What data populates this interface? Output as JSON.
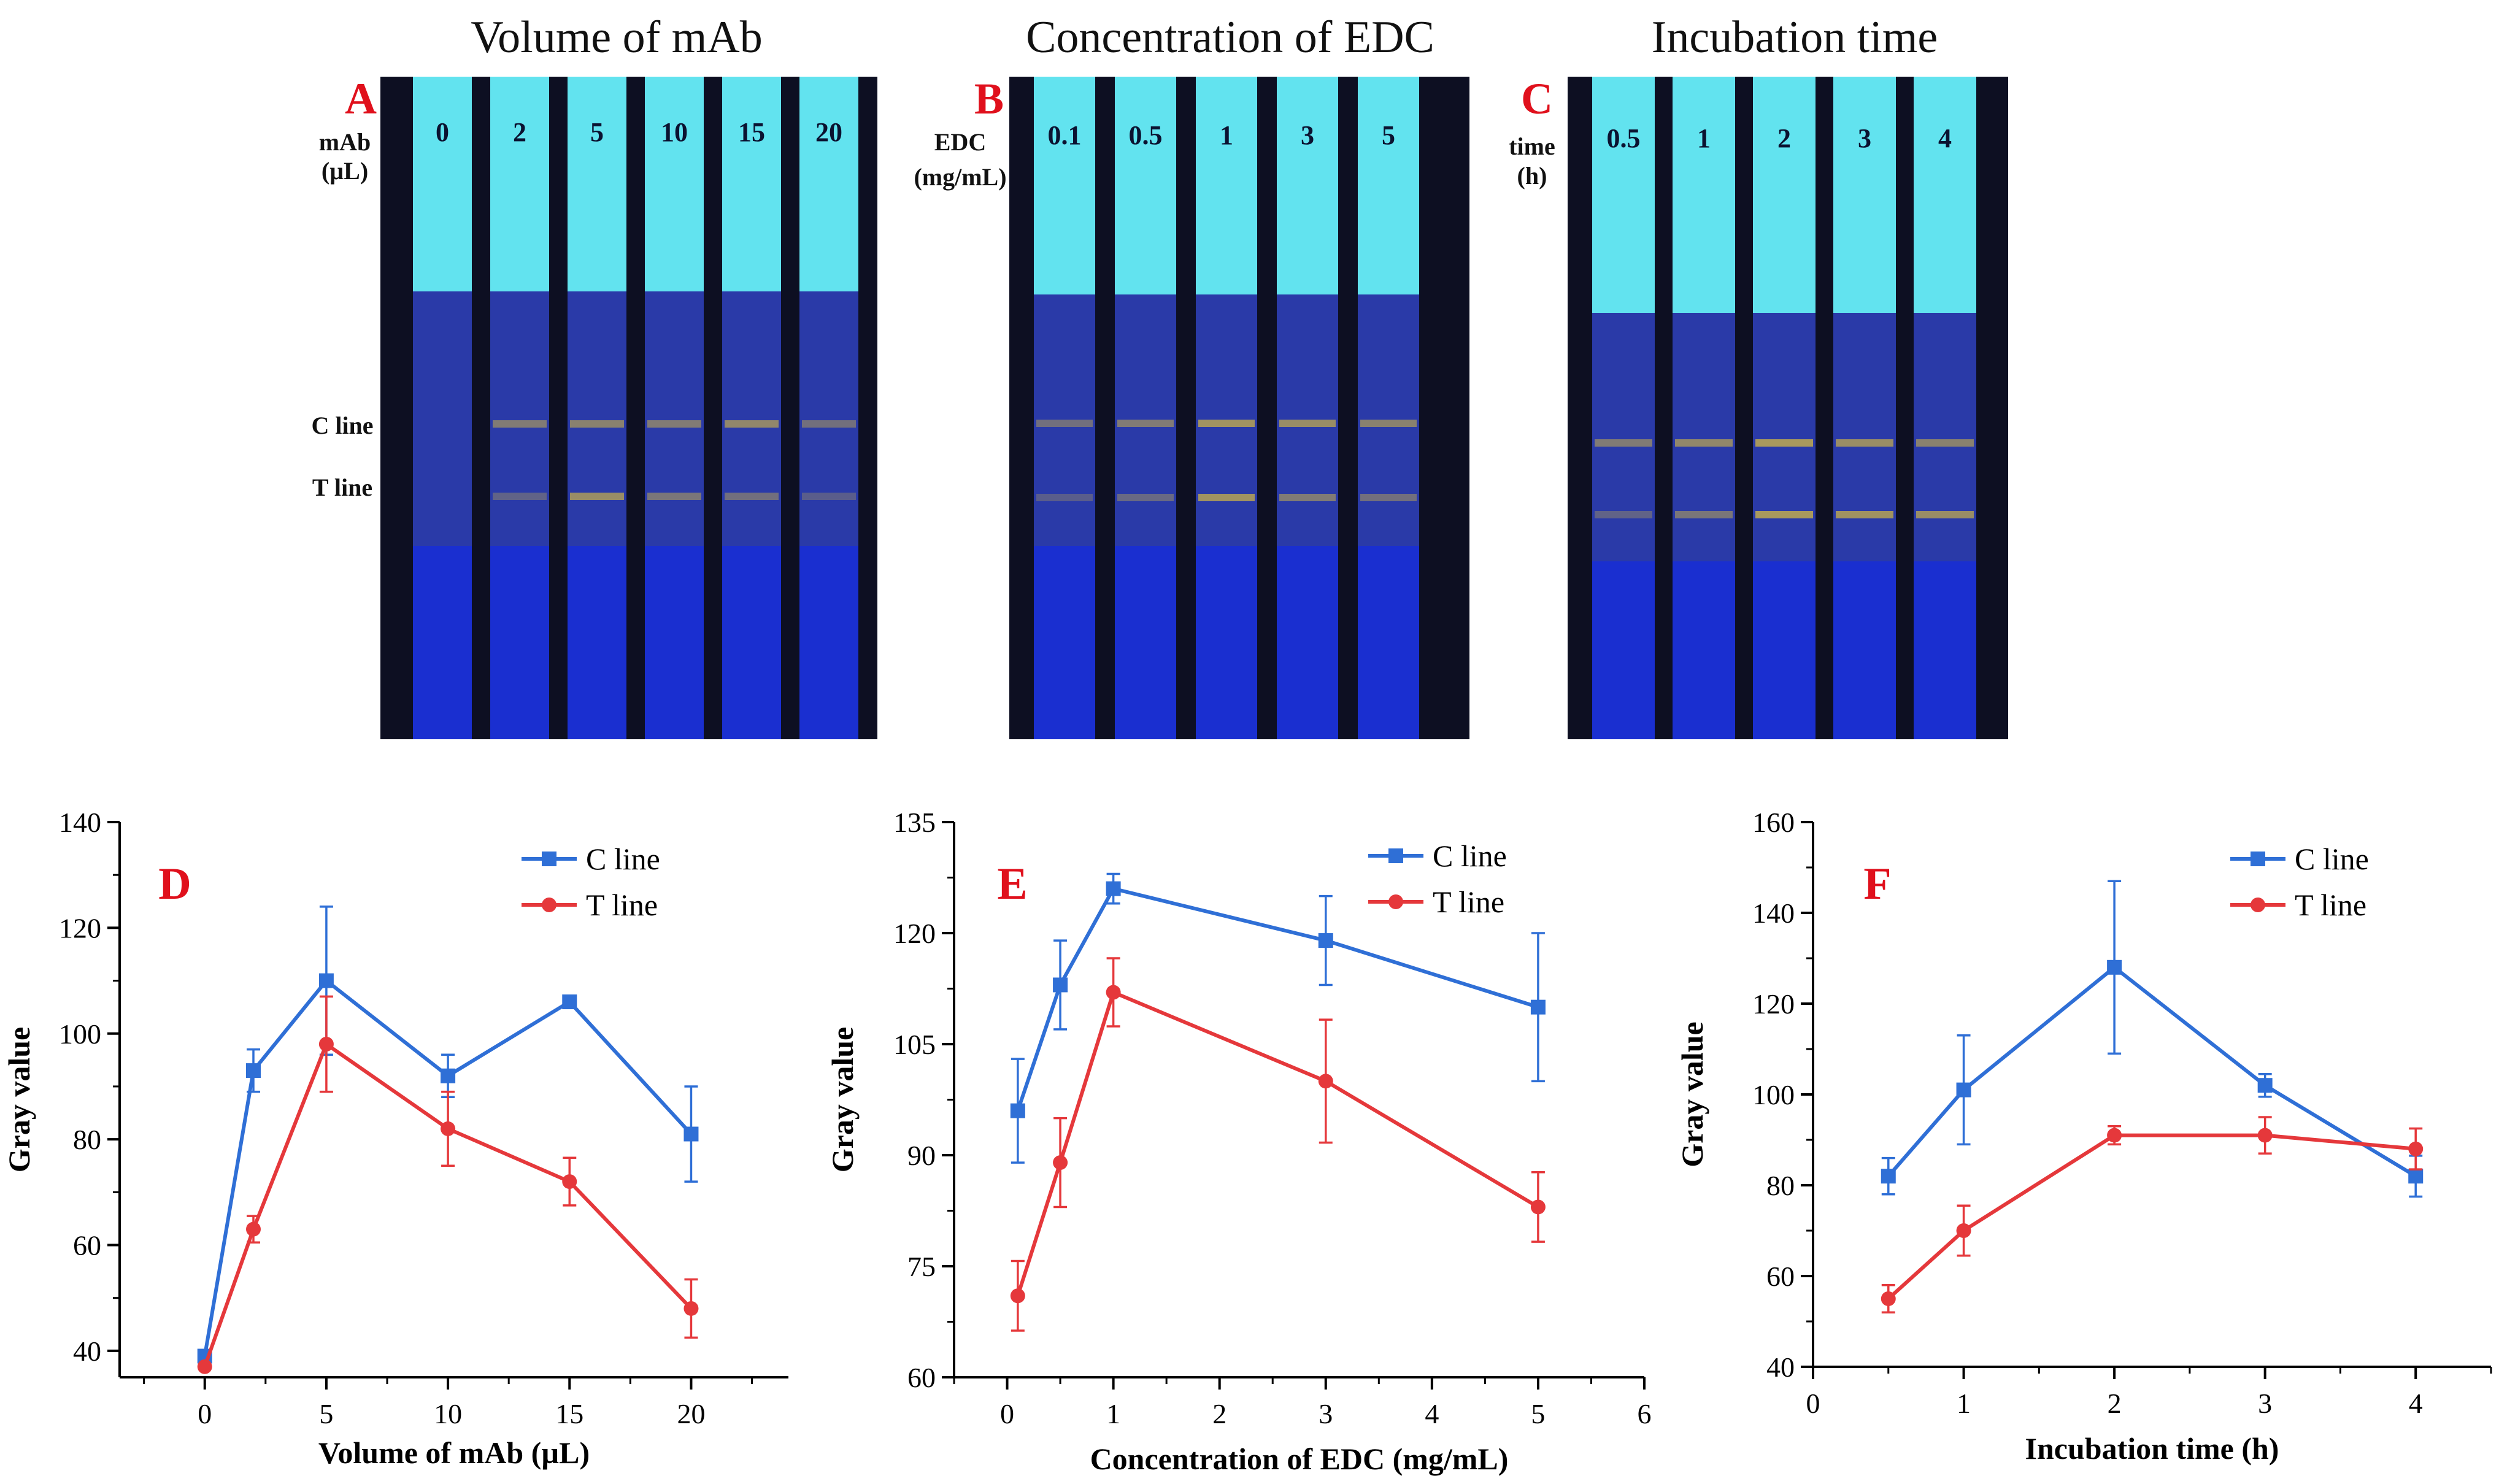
{
  "photos": [
    {
      "letter": "A",
      "title": "Volume of mAb",
      "param_label_line1": "mAb",
      "param_label_line2": "(µL)",
      "strip_labels": [
        "0",
        "2",
        "5",
        "10",
        "15",
        "20"
      ],
      "c_line_label": "C line",
      "t_line_label": "T line",
      "c_intensity": [
        0,
        0.55,
        0.6,
        0.55,
        0.65,
        0.45
      ],
      "t_intensity": [
        0,
        0.35,
        0.7,
        0.5,
        0.45,
        0.3
      ]
    },
    {
      "letter": "B",
      "title": "Concentration of  EDC",
      "param_label_line1": "EDC",
      "param_label_line2": "(mg/mL)",
      "strip_labels": [
        "0.1",
        "0.5",
        "1",
        "3",
        "5"
      ],
      "c_line_label": "",
      "t_line_label": "",
      "c_intensity": [
        0.45,
        0.55,
        0.75,
        0.7,
        0.6
      ],
      "t_intensity": [
        0.3,
        0.4,
        0.75,
        0.55,
        0.45
      ]
    },
    {
      "letter": "C",
      "title": "Incubation time",
      "param_label_line1": "time",
      "param_label_line2": "(h)",
      "strip_labels": [
        "0.5",
        "1",
        "2",
        "3",
        "4"
      ],
      "c_line_label": "",
      "t_line_label": "",
      "c_intensity": [
        0.55,
        0.65,
        0.8,
        0.7,
        0.6
      ],
      "t_intensity": [
        0.35,
        0.5,
        0.8,
        0.75,
        0.7
      ]
    }
  ],
  "colors": {
    "c_line": "#2f6fd6",
    "t_line": "#e5383b",
    "panel_letter": "#e0101c",
    "strip_head": "#62e3ef",
    "strip_body": "#2a3aa8",
    "strip_foot": "#1a2fd0",
    "strip_gap": "#0d0f22",
    "band": "#c9b14a"
  },
  "chart_data": [
    {
      "panel": "D",
      "type": "line",
      "xlabel": "Volume of mAb (µL)",
      "ylabel": "Gray value",
      "xlim": [
        -3.5,
        24
      ],
      "ylim": [
        35,
        140
      ],
      "xticks": [
        0,
        5,
        10,
        15,
        20
      ],
      "yticks": [
        40,
        60,
        80,
        100,
        120,
        140
      ],
      "x": [
        0,
        2,
        5,
        10,
        15,
        20
      ],
      "series": [
        {
          "name": "C line",
          "marker": "square",
          "values": [
            39,
            93,
            110,
            92,
            106,
            81
          ],
          "errors": [
            0,
            4,
            14,
            4,
            1,
            9
          ]
        },
        {
          "name": "T line",
          "marker": "circle",
          "values": [
            37,
            63,
            98,
            82,
            72,
            48
          ],
          "errors": [
            0,
            2.5,
            9,
            7,
            4.5,
            5.5
          ]
        }
      ],
      "legend_position": "top-right"
    },
    {
      "panel": "E",
      "type": "line",
      "xlabel": "Concentration of EDC (mg/mL)",
      "ylabel": "Gray value",
      "xlim": [
        -0.5,
        6
      ],
      "ylim": [
        60,
        135
      ],
      "xticks": [
        0,
        1,
        2,
        3,
        4,
        5,
        6
      ],
      "yticks": [
        60,
        75,
        90,
        105,
        120,
        135
      ],
      "x": [
        0.1,
        0.5,
        1,
        3,
        5
      ],
      "series": [
        {
          "name": "C line",
          "marker": "square",
          "values": [
            96,
            113,
            126,
            119,
            110
          ],
          "errors": [
            7,
            6,
            2,
            6,
            10
          ]
        },
        {
          "name": "T line",
          "marker": "circle",
          "values": [
            71,
            89,
            112,
            100,
            83
          ],
          "errors": [
            4.7,
            6,
            4.6,
            8.3,
            4.7
          ]
        }
      ],
      "legend_position": "top-right"
    },
    {
      "panel": "F",
      "type": "line",
      "xlabel": "Incubation time (h)",
      "ylabel": "Gray value",
      "xlim": [
        0,
        4.5
      ],
      "ylim": [
        40,
        160
      ],
      "xticks": [
        0,
        1,
        2,
        3,
        4
      ],
      "yticks": [
        40,
        60,
        80,
        100,
        120,
        140,
        160
      ],
      "x": [
        0.5,
        1,
        2,
        3,
        4
      ],
      "series": [
        {
          "name": "C line",
          "marker": "square",
          "values": [
            82,
            101,
            128,
            102,
            82
          ],
          "errors": [
            4,
            12,
            19,
            2.5,
            4.5
          ]
        },
        {
          "name": "T line",
          "marker": "circle",
          "values": [
            55,
            70,
            91,
            91,
            88
          ],
          "errors": [
            3,
            5.5,
            2,
            4,
            4.5
          ]
        }
      ],
      "legend_position": "top-right"
    }
  ]
}
